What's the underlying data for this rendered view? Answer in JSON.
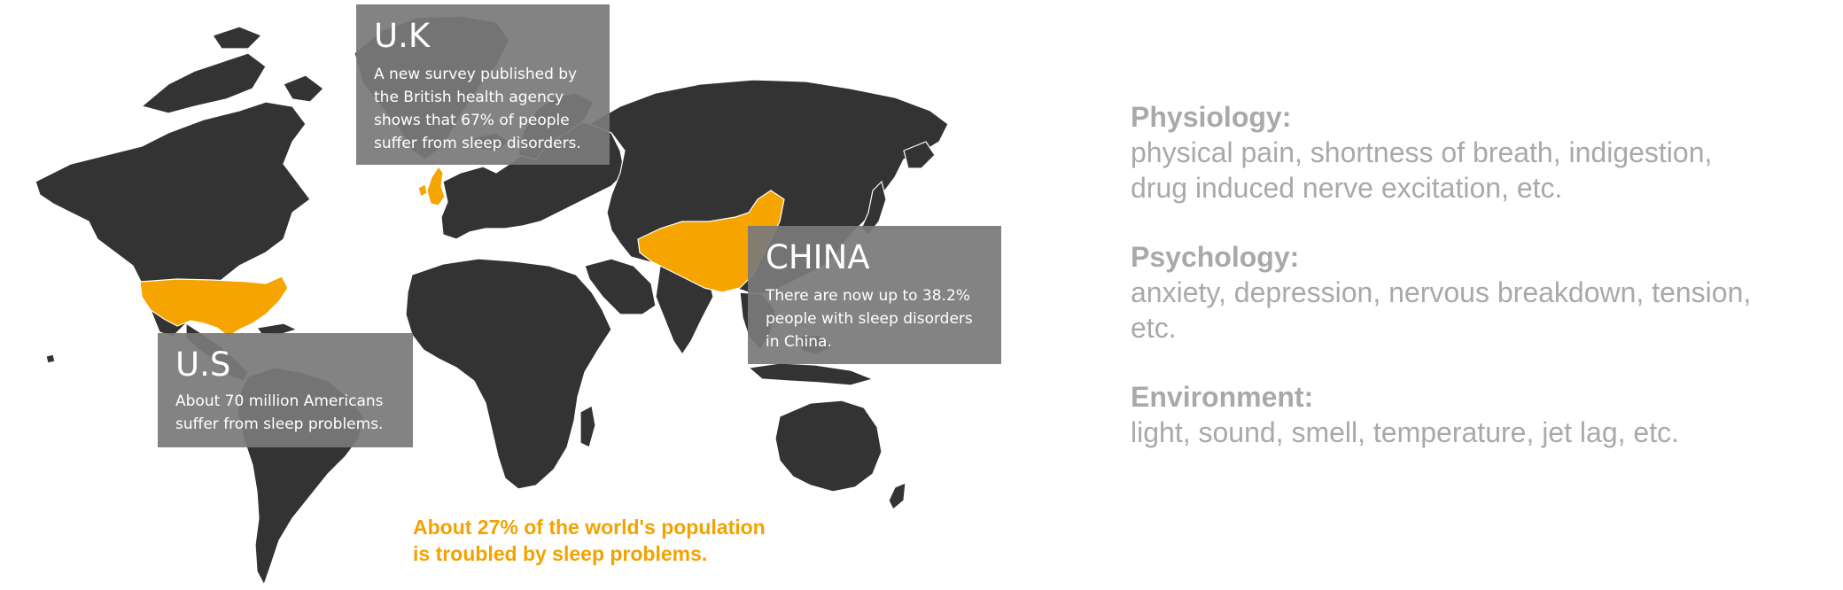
{
  "map": {
    "land_color": "#333333",
    "highlight_color": "#f5a400",
    "callout_color": "#7a7a7a",
    "highlighted_countries": [
      "United States",
      "United Kingdom",
      "China"
    ]
  },
  "callouts": {
    "uk": {
      "title": "U.K",
      "lines": [
        "A new survey published by",
        "the British health agency",
        "shows that 67% of people",
        "suffer from sleep disorders."
      ]
    },
    "china": {
      "title": "CHINA",
      "lines": [
        "There are now up to 38.2%",
        "people with sleep disorders",
        "in China."
      ]
    },
    "us": {
      "title": "U.S",
      "lines": [
        "About 70 million Americans",
        "suffer from sleep problems."
      ]
    }
  },
  "world_note": {
    "line1": "About 27% of the world's population",
    "line2": "is troubled by sleep problems.",
    "color": "#f3a200"
  },
  "causes": {
    "color": "#a9a9a9",
    "physiology": {
      "heading": "Physiology:",
      "line1": "physical pain, shortness of breath, indigestion,",
      "line2": "drug induced nerve excitation, etc."
    },
    "psychology": {
      "heading": "Psychology:",
      "line1": "anxiety, depression, nervous breakdown, tension,",
      "line2": "etc."
    },
    "environment": {
      "heading": "Environment:",
      "line1": "light, sound, smell, temperature, jet lag, etc."
    }
  }
}
